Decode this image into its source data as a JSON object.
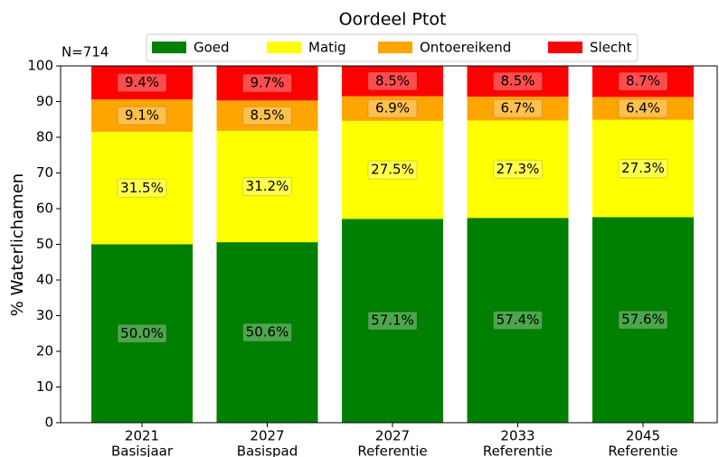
{
  "chart_data": {
    "type": "stacked_bar",
    "title": "Oordeel Ptot",
    "annotation": "N=714",
    "y_label": "% Waterlichamen",
    "categories": [
      [
        "2021",
        "Basisjaar"
      ],
      [
        "2027",
        "Basispad"
      ],
      [
        "2027",
        "Referentie"
      ],
      [
        "2033",
        "Referentie"
      ],
      [
        "2045",
        "Referentie"
      ]
    ],
    "series": [
      {
        "name": "Goed",
        "color": "#008000",
        "values": [
          50.0,
          50.6,
          57.1,
          57.4,
          57.6
        ],
        "value_labels": [
          "50.0%",
          "50.6%",
          "57.1%",
          "57.4%",
          "57.6%"
        ]
      },
      {
        "name": "Matig",
        "color": "#ffff00",
        "values": [
          31.5,
          31.2,
          27.5,
          27.3,
          27.3
        ],
        "value_labels": [
          "31.5%",
          "31.2%",
          "27.5%",
          "27.3%",
          "27.3%"
        ]
      },
      {
        "name": "Ontoereikend",
        "color": "#ffa500",
        "values": [
          9.1,
          8.5,
          6.9,
          6.7,
          6.4
        ],
        "value_labels": [
          "9.1%",
          "8.5%",
          "6.9%",
          "6.7%",
          "6.4%"
        ]
      },
      {
        "name": "Slecht",
        "color": "#ff0000",
        "values": [
          9.4,
          9.7,
          8.5,
          8.5,
          8.7
        ],
        "value_labels": [
          "9.4%",
          "9.7%",
          "8.5%",
          "8.5%",
          "8.7%"
        ]
      }
    ],
    "ylim": [
      0,
      100
    ],
    "yticks": [
      0,
      10,
      20,
      30,
      40,
      50,
      60,
      70,
      80,
      90,
      100
    ],
    "legend": "top"
  }
}
